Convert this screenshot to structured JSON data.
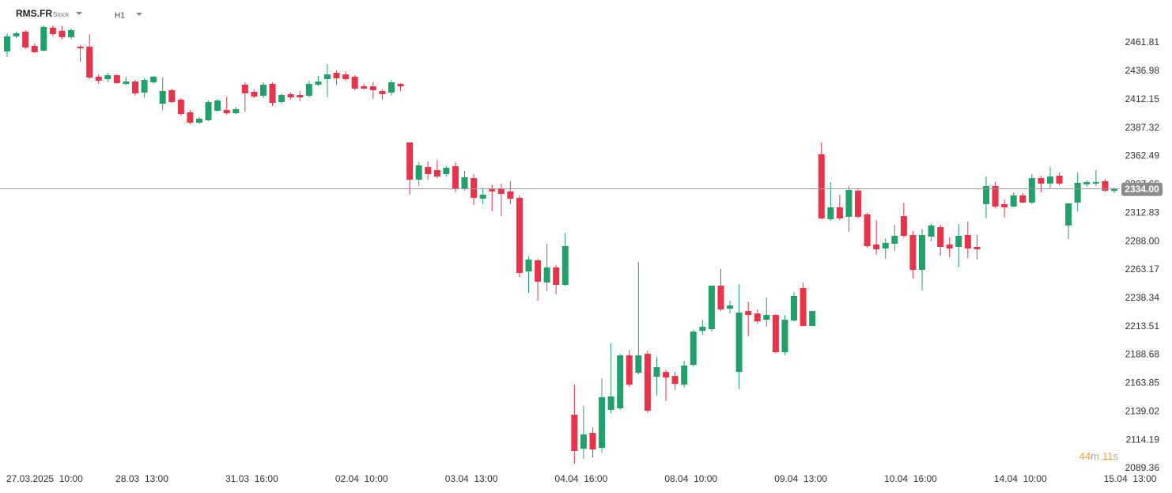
{
  "chart_data": {
    "type": "candlestick",
    "symbol": "RMS.FR",
    "instrument_type": "Stock",
    "timeframe": "H1",
    "up_color": "#22a06b",
    "down_color": "#e8334a",
    "categories": [
      null,
      null,
      null,
      "27.03.2025  10:00",
      null,
      null,
      null,
      null,
      null,
      null,
      null,
      null,
      null,
      null,
      null,
      "28.03  13:00",
      null,
      null,
      null,
      null,
      null,
      null,
      null,
      null,
      null,
      null,
      null,
      "31.03  16:00",
      null,
      null,
      null,
      null,
      null,
      null,
      null,
      null,
      null,
      null,
      null,
      "02.04  10:00",
      null,
      null,
      null,
      null,
      null,
      null,
      null,
      null,
      null,
      null,
      null,
      "03.04  13:00",
      null,
      null,
      null,
      null,
      null,
      null,
      null,
      null,
      null,
      null,
      null,
      "04.04  16:00",
      null,
      null,
      null,
      null,
      null,
      null,
      null,
      null,
      null,
      null,
      null,
      "08.04  10:00",
      null,
      null,
      null,
      null,
      null,
      null,
      null,
      null,
      null,
      null,
      null,
      "09.04  13:00",
      null,
      null,
      null,
      null,
      null,
      null,
      null,
      null,
      null,
      null,
      null,
      "10.04  16:00",
      null,
      null,
      null,
      null,
      null,
      null,
      null,
      null,
      null,
      null,
      null,
      "14.04  10:00",
      null,
      null,
      null,
      null,
      null,
      null,
      null,
      null,
      null,
      null,
      null,
      "15.04  13:00"
    ],
    "open": [
      2454.2,
      2467.4,
      2471.5,
      2459.0,
      2454.9,
      2475.0,
      2472.2,
      2466.7,
      2458.4,
      2458.4,
      2432.1,
      2430.0,
      2433.4,
      2425.8,
      2427.9,
      2418.2,
      2427.2,
      2408.5,
      2420.3,
      2412.0,
      2400.9,
      2391.9,
      2394.0,
      2402.3,
      2403.0,
      2400.2,
      2425.1,
      2418.9,
      2415.4,
      2425.8,
      2409.9,
      2416.8,
      2416.1,
      2415.4,
      2425.1,
      2430.0,
      2435.5,
      2434.1,
      2432.1,
      2423.7,
      2423.7,
      2419.6,
      2418.2,
      2425.8,
      2374.6,
      2342.0,
      2353.1,
      2350.4,
      2346.9,
      2353.8,
      2333.7,
      2343.4,
      2325.4,
      2333.7,
      2334.4,
      2331.7,
      2326.1,
      2261.7,
      2271.4,
      2252.1,
      2265.2,
      2250.0,
      2136.4,
      2106.7,
      2120.5,
      2107.4,
      2140.6,
      2142.0,
      2188.3,
      2173.1,
      2189.7,
      2169.6,
      2173.8,
      2170.3,
      2162.7,
      2180.0,
      2209.8,
      2211.2,
      2249.3,
      2229.2,
      2173.8,
      2227.1,
      2225.0,
      2219.5,
      2223.7,
      2191.1,
      2218.8,
      2247.2,
      2214.0,
      2364.2,
      2307.4,
      2317.8,
      2309.5,
      2332.4,
      2311.6,
      2285.3,
      2281.8,
      2286.0,
      2310.2,
      2293.6,
      2263.1,
      2292.2,
      2300.5,
      2285.3,
      2283.2,
      2293.6,
      2283.2,
      2320.6,
      2336.5,
      2320.6,
      2318.5,
      2328.2,
      2322.0,
      2343.4,
      2338.6,
      2345.5,
      2301.9,
      2322.0,
      2337.9,
      2338.6,
      2340.7,
      2332.2,
      null,
      null
    ],
    "high": [
      2470.1,
      2471.5,
      2472.9,
      2461.1,
      2477.0,
      2477.0,
      2476.4,
      2474.3,
      2459.7,
      2469.4,
      2434.1,
      2435.5,
      2434.1,
      2432.1,
      2429.3,
      2430.7,
      2432.8,
      2431.4,
      2421.7,
      2413.4,
      2403.0,
      2396.7,
      2411.3,
      2412.7,
      2414.7,
      2405.7,
      2427.2,
      2421.0,
      2427.2,
      2427.2,
      2417.5,
      2418.2,
      2419.6,
      2428.6,
      2432.8,
      2443.1,
      2437.6,
      2436.9,
      2433.4,
      2425.8,
      2427.2,
      2421.0,
      2429.3,
      2426.5,
      2374.6,
      2357.3,
      2358.0,
      2359.4,
      2353.8,
      2357.3,
      2349.7,
      2346.9,
      2335.1,
      2337.2,
      2338.6,
      2340.7,
      2328.2,
      2274.9,
      2272.8,
      2286.0,
      2267.3,
      2295.7,
      2162.7,
      2144.1,
      2125.4,
      2168.3,
      2198.7,
      2189.7,
      2193.2,
      2270.0,
      2192.5,
      2187.0,
      2175.9,
      2173.8,
      2183.5,
      2210.5,
      2219.5,
      2249.3,
      2263.8,
      2236.1,
      2250.7,
      2235.4,
      2228.5,
      2238.9,
      2224.4,
      2223.7,
      2243.7,
      2252.1,
      2227.1,
      2374.6,
      2340.0,
      2328.9,
      2336.5,
      2334.4,
      2313.0,
      2306.7,
      2290.8,
      2302.6,
      2321.3,
      2297.1,
      2298.4,
      2304.0,
      2302.6,
      2291.5,
      2303.3,
      2305.4,
      2293.6,
      2344.8,
      2340.0,
      2324.7,
      2330.9,
      2330.3,
      2346.9,
      2345.5,
      2353.1,
      2348.3,
      2321.3,
      2348.3,
      2341.4,
      2350.4,
      2342.8,
      2335.1,
      null,
      null
    ],
    "low": [
      2449.4,
      2466.0,
      2456.3,
      2452.8,
      2454.2,
      2467.4,
      2464.6,
      2464.6,
      2445.2,
      2430.0,
      2425.8,
      2427.2,
      2425.8,
      2424.4,
      2415.4,
      2414.0,
      2425.8,
      2403.0,
      2409.2,
      2398.1,
      2390.5,
      2390.5,
      2393.3,
      2401.6,
      2398.8,
      2399.5,
      2401.6,
      2413.4,
      2413.4,
      2406.4,
      2408.5,
      2412.0,
      2410.6,
      2414.0,
      2423.7,
      2414.0,
      2425.1,
      2428.6,
      2420.3,
      2421.0,
      2412.7,
      2412.0,
      2415.4,
      2419.6,
      2328.9,
      2336.5,
      2342.0,
      2343.4,
      2344.8,
      2331.0,
      2332.4,
      2319.9,
      2320.6,
      2314.4,
      2310.2,
      2320.6,
      2256.9,
      2243.0,
      2236.1,
      2244.4,
      2241.7,
      2248.6,
      2093.5,
      2097.7,
      2099.1,
      2103.2,
      2137.8,
      2140.6,
      2160.7,
      2171.7,
      2137.8,
      2153.0,
      2148.2,
      2157.9,
      2160.0,
      2178.7,
      2206.4,
      2209.1,
      2227.1,
      2225.0,
      2158.6,
      2205.0,
      2216.0,
      2213.3,
      2190.4,
      2188.4,
      2218.1,
      2214.0,
      2214.0,
      2307.4,
      2306.0,
      2306.7,
      2296.4,
      2308.1,
      2282.5,
      2276.3,
      2272.8,
      2279.7,
      2291.5,
      2255.5,
      2245.1,
      2288.0,
      2275.6,
      2274.2,
      2265.2,
      2273.5,
      2272.1,
      2308.1,
      2317.1,
      2308.8,
      2317.8,
      2321.3,
      2320.6,
      2331.0,
      2334.4,
      2337.2,
      2290.1,
      2314.4,
      2335.8,
      2336.5,
      2331.0,
      2330.3,
      null,
      null
    ],
    "close": [
      2467.4,
      2470.1,
      2457.7,
      2453.5,
      2475.7,
      2469.4,
      2466.7,
      2472.9,
      2457.0,
      2431.4,
      2428.6,
      2433.4,
      2426.5,
      2427.9,
      2417.5,
      2429.3,
      2432.1,
      2419.6,
      2409.9,
      2399.5,
      2391.9,
      2395.4,
      2409.9,
      2411.3,
      2400.2,
      2403.7,
      2417.5,
      2414.7,
      2425.1,
      2409.2,
      2416.1,
      2414.0,
      2414.0,
      2425.8,
      2427.9,
      2434.1,
      2430.7,
      2430.0,
      2421.7,
      2421.7,
      2420.3,
      2416.8,
      2427.2,
      2423.7,
      2342.0,
      2354.5,
      2346.9,
      2344.8,
      2352.4,
      2333.7,
      2344.1,
      2326.1,
      2328.9,
      2331.7,
      2329.6,
      2325.4,
      2260.4,
      2272.1,
      2252.8,
      2265.2,
      2250.0,
      2283.9,
      2104.6,
      2119.1,
      2106.0,
      2151.7,
      2152.4,
      2188.3,
      2162.7,
      2188.3,
      2140.0,
      2178.0,
      2169.0,
      2163.4,
      2179.4,
      2209.1,
      2213.3,
      2249.3,
      2228.5,
      2232.0,
      2225.7,
      2223.7,
      2218.1,
      2223.7,
      2191.1,
      2219.5,
      2240.3,
      2214.0,
      2227.1,
      2308.1,
      2317.8,
      2308.1,
      2333.0,
      2309.5,
      2283.9,
      2281.1,
      2286.7,
      2292.9,
      2292.9,
      2263.1,
      2293.6,
      2301.9,
      2283.2,
      2281.8,
      2292.9,
      2281.8,
      2281.1,
      2336.5,
      2318.5,
      2317.8,
      2328.2,
      2322.0,
      2343.4,
      2338.6,
      2344.8,
      2338.6,
      2321.3,
      2339.3,
      2340.0,
      2340.0,
      2332.4,
      2334,
      null,
      null
    ],
    "ylim": [
      2087.3,
      2499.2
    ],
    "yticks": [
      2461.81,
      2436.98,
      2412.15,
      2387.32,
      2362.49,
      2337.66,
      2312.83,
      {
        "value": 2288,
        "label": "2288.00"
      },
      2263.17,
      2238.34,
      2213.51,
      2188.68,
      2163.85,
      2139.02,
      2114.19,
      2089.36
    ],
    "last_price": {
      "value": 2334,
      "label": "2334.00"
    },
    "countdown": {
      "minutes": 44,
      "minutes_unit": "m",
      "seconds": 11,
      "seconds_unit": "s"
    }
  }
}
